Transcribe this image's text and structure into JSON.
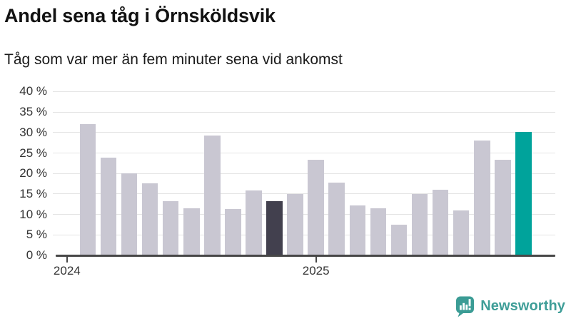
{
  "header": {
    "title": "Andel sena tåg i Örnsköldsvik",
    "subtitle": "Tåg som var mer än fem minuter sena vid ankomst"
  },
  "chart_data": {
    "type": "bar",
    "title": "Andel sena tåg i Örnsköldsvik",
    "subtitle": "Tåg som var mer än fem minuter sena vid ankomst",
    "unit": "%",
    "categories": [
      "2024-02",
      "2024-03",
      "2024-04",
      "2024-05",
      "2024-06",
      "2024-07",
      "2024-08",
      "2024-09",
      "2024-10",
      "2024-11",
      "2024-12",
      "2025-01",
      "2025-02",
      "2025-03",
      "2025-04",
      "2025-05",
      "2025-06",
      "2025-07",
      "2025-08",
      "2025-09",
      "2025-10",
      "2025-11"
    ],
    "values": [
      32.0,
      23.8,
      20.1,
      17.6,
      13.2,
      11.5,
      29.3,
      11.4,
      15.8,
      13.2,
      14.9,
      23.4,
      17.8,
      12.2,
      11.5,
      7.5,
      14.9,
      16.0,
      11.0,
      28.1,
      23.3,
      30.1
    ],
    "highlight": {
      "dark_index": 9,
      "teal_index": 21
    },
    "yticks": [
      0,
      5,
      10,
      15,
      20,
      25,
      30,
      35,
      40
    ],
    "ytick_suffix": " %",
    "ylim": [
      0,
      40
    ],
    "grid": true,
    "legend_position": "none",
    "xticks": [
      {
        "label": "2024",
        "slot_index": -1
      },
      {
        "label": "2025",
        "slot_index": 11
      }
    ],
    "colors": {
      "bar_default": "#c9c7d2",
      "bar_dark": "#42404e",
      "bar_teal": "#00a39b",
      "gridline": "#e4e4e4",
      "axis": "#474747",
      "tick_label": "#333333"
    }
  },
  "footer": {
    "brand": "Newsworthy",
    "brand_color": "#3f9e98",
    "icon": "newsworthy-speech-bubble-bar-chart-icon",
    "icon_color": "#3b9c95"
  }
}
